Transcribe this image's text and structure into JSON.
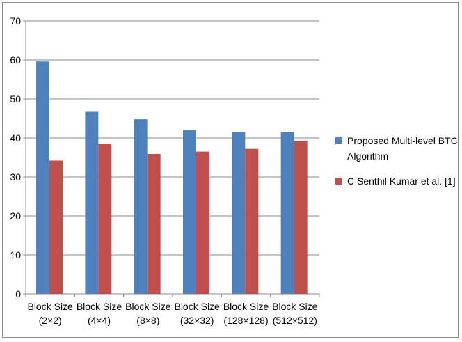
{
  "chart_data": {
    "type": "bar",
    "title": "",
    "xlabel": "",
    "ylabel": "",
    "ylim": [
      0,
      70
    ],
    "yticks": [
      0,
      10,
      20,
      30,
      40,
      50,
      60,
      70
    ],
    "grid": true,
    "legend_position": "right",
    "categories": [
      [
        "Block Size",
        "(2×2)"
      ],
      [
        "Block Size",
        "(4×4)"
      ],
      [
        "Block Size",
        "(8×8)"
      ],
      [
        "Block Size",
        "(32×32)"
      ],
      [
        "Block Size",
        "(128×128)"
      ],
      [
        "Block Size",
        "(512×512)"
      ]
    ],
    "series": [
      {
        "name": "Proposed Multi-level BTC Algorithm",
        "legend_lines": [
          "Proposed Multi-level  BTC",
          "Algorithm"
        ],
        "color": "#4f81bd",
        "values": [
          59.6,
          46.7,
          44.8,
          42.0,
          41.6,
          41.5
        ]
      },
      {
        "name": "C Senthil Kumar et al. [1]",
        "legend_lines": [
          "C Senthil Kumar et al. [1]"
        ],
        "color": "#c0504d",
        "values": [
          34.2,
          38.4,
          35.9,
          36.5,
          37.2,
          39.3
        ]
      }
    ]
  }
}
